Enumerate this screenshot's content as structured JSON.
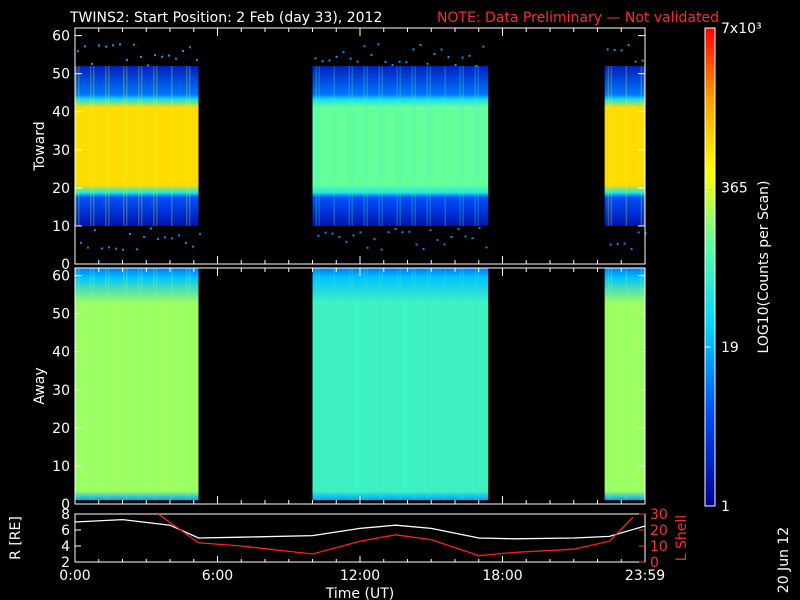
{
  "title": {
    "main": "TWINS2: Start Position:  2 Feb (day  33), 2012",
    "note": "NOTE: Data Preliminary — Not validated"
  },
  "date_stamp": "20 Jun 12",
  "colors": {
    "note": "#ff2020",
    "r_line": "#ffffff",
    "l_line": "#ff2020",
    "background": "#000000"
  },
  "chart_data": [
    {
      "type": "heatmap",
      "panel": "toward",
      "ylabel": "Toward",
      "xlabel": "",
      "xlim": [
        0,
        24
      ],
      "ylim": [
        0,
        62
      ],
      "yticks": [
        "0",
        "10",
        "20",
        "30",
        "40",
        "50",
        "60"
      ],
      "data_intervals_hours": [
        [
          0,
          5.2
        ],
        [
          10.0,
          17.4
        ],
        [
          22.3,
          24
        ]
      ],
      "band": {
        "low": 13,
        "high": 49,
        "scatter_low": 5,
        "scatter_high": 60
      },
      "log10_level_by_interval": [
        3.0,
        2.2,
        3.0
      ],
      "grid": false
    },
    {
      "type": "heatmap",
      "panel": "away",
      "ylabel": "Away",
      "xlabel": "",
      "xlim": [
        0,
        24
      ],
      "ylim": [
        0,
        62
      ],
      "yticks": [
        "0",
        "10",
        "20",
        "30",
        "40",
        "50",
        "60"
      ],
      "data_intervals_hours": [
        [
          0,
          5.2
        ],
        [
          10.0,
          17.4
        ],
        [
          22.3,
          24
        ]
      ],
      "band": {
        "low": 1,
        "high": 62
      },
      "log10_level_by_interval": [
        2.6,
        2.1,
        2.6
      ],
      "grid": false
    },
    {
      "type": "line",
      "panel": "orbit",
      "ylabel": "R [RE]",
      "y2label": "L Shell",
      "xlabel": "Time (UT)",
      "xlim": [
        0,
        24
      ],
      "xticks": [
        "0:00",
        "6:00",
        "12:00",
        "18:00",
        "23:59"
      ],
      "ylim": [
        2,
        8
      ],
      "yticks": [
        "2",
        "4",
        "6",
        "8"
      ],
      "y2lim": [
        0,
        30
      ],
      "y2ticks": [
        "0",
        "10",
        "20",
        "30"
      ],
      "series": [
        {
          "axis": "left",
          "x": [
            0,
            2,
            4,
            5.2,
            7,
            10,
            12,
            13.5,
            15,
            17,
            18.5,
            21,
            22.5,
            24
          ],
          "y": [
            7.0,
            7.3,
            6.6,
            5.0,
            5.1,
            5.3,
            6.2,
            6.6,
            6.2,
            5.0,
            4.9,
            5.0,
            5.2,
            6.5
          ]
        },
        {
          "axis": "right",
          "x": [
            3.5,
            5.2,
            7,
            10,
            12,
            13.5,
            15,
            17,
            18.5,
            21,
            22.5,
            23.5
          ],
          "y": [
            30,
            12,
            10,
            5,
            13,
            17,
            14,
            4,
            6,
            8,
            13,
            28
          ]
        }
      ]
    }
  ],
  "colorbar": {
    "label": "LOG10(Counts per Scan)",
    "ticks": [
      "7x10³",
      "365",
      "19",
      "1"
    ],
    "log_range": [
      0,
      3.845
    ]
  }
}
